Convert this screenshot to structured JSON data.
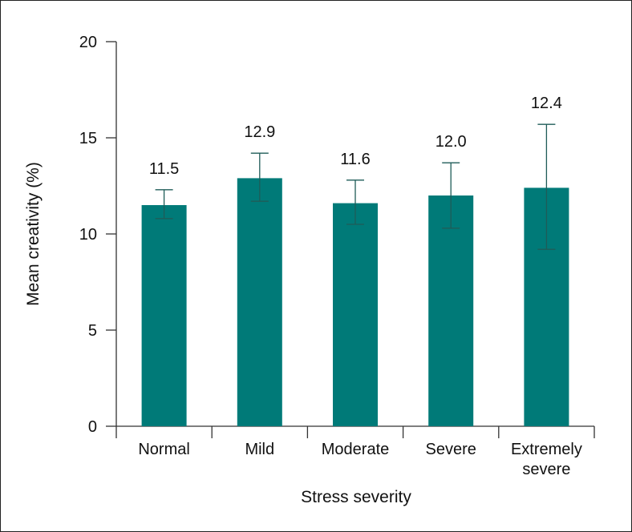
{
  "chart_data": {
    "type": "bar",
    "title": "",
    "xlabel": "Stress severity",
    "ylabel": "Mean creativity (%)",
    "ylim": [
      0,
      20
    ],
    "yticks": [
      "0",
      "5",
      "10",
      "15",
      "20"
    ],
    "categories": [
      [
        "Normal"
      ],
      [
        "Mild"
      ],
      [
        "Moderate"
      ],
      [
        "Severe"
      ],
      [
        "Extremely",
        "severe"
      ]
    ],
    "values": [
      11.5,
      12.9,
      11.6,
      12.0,
      12.4
    ],
    "value_labels": [
      "11.5",
      "12.9",
      "11.6",
      "12.0",
      "12.4"
    ],
    "error_upper": [
      12.3,
      14.2,
      12.8,
      13.7,
      15.7
    ],
    "error_lower": [
      10.8,
      11.7,
      10.5,
      10.3,
      9.2
    ],
    "bar_color": "#007a78",
    "errorbar_color": "#1f5c58",
    "grid": false,
    "legend": "none"
  }
}
